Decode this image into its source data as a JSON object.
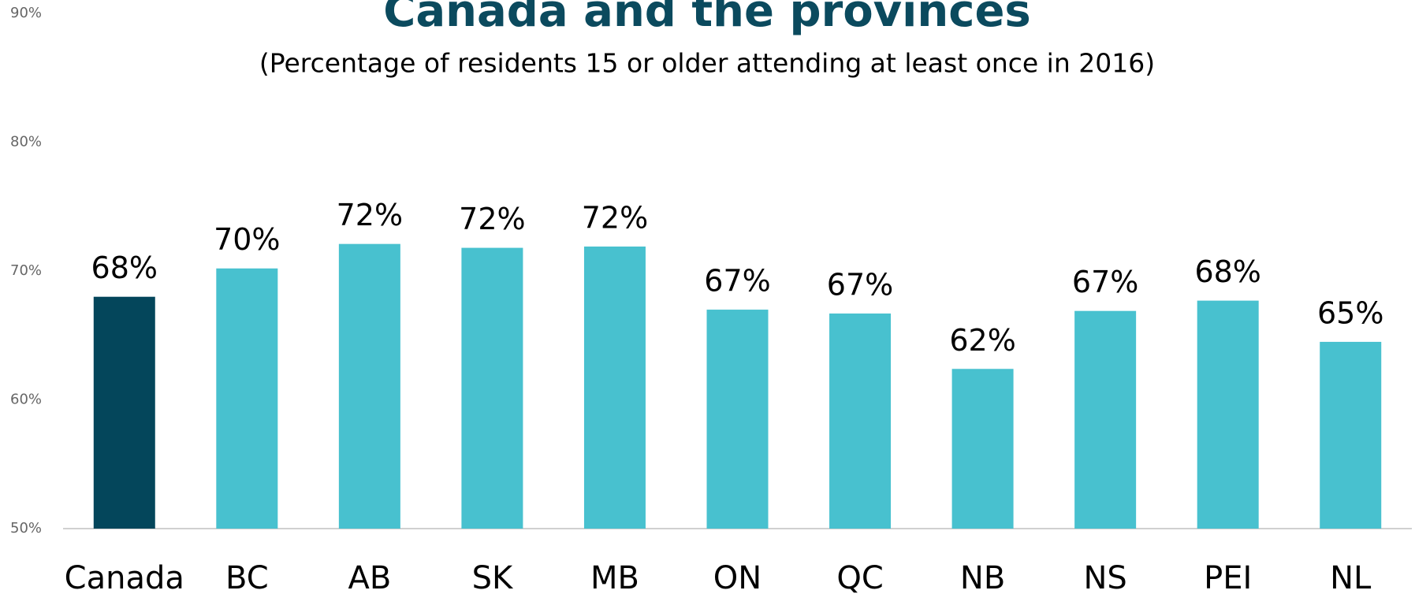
{
  "chart_data": {
    "type": "bar",
    "title": "Canada and the provinces",
    "subtitle": "(Percentage of residents 15 or older attending at least once in 2016)",
    "categories": [
      "Canada",
      "BC",
      "AB",
      "SK",
      "MB",
      "ON",
      "QC",
      "NB",
      "NS",
      "PEI",
      "NL"
    ],
    "values": [
      68.0,
      70.2,
      72.1,
      71.8,
      71.9,
      67.0,
      66.7,
      62.4,
      66.9,
      67.7,
      64.5
    ],
    "value_labels": [
      "68%",
      "70%",
      "72%",
      "72%",
      "72%",
      "67%",
      "67%",
      "62%",
      "67%",
      "68%",
      "65%"
    ],
    "colors": [
      "#04465b",
      "#48c1cf",
      "#48c1cf",
      "#48c1cf",
      "#48c1cf",
      "#48c1cf",
      "#48c1cf",
      "#48c1cf",
      "#48c1cf",
      "#48c1cf",
      "#48c1cf"
    ],
    "ylim": [
      50,
      90
    ],
    "yticks": [
      {
        "value": 50,
        "label": "50%"
      },
      {
        "value": 60,
        "label": "60%"
      },
      {
        "value": 70,
        "label": "70%"
      },
      {
        "value": 80,
        "label": "80%"
      },
      {
        "value": 90,
        "label": "90%"
      }
    ],
    "grid": false
  }
}
